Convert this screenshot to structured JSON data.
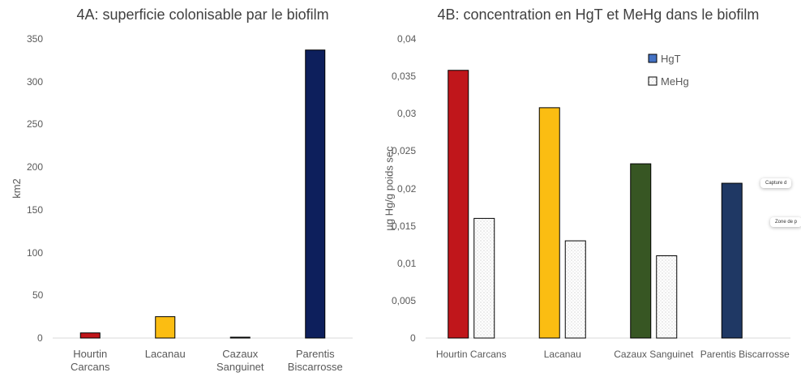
{
  "chart_data": [
    {
      "type": "bar",
      "title": "4A: superficie colonisable par le biofilm",
      "y_label": "km2",
      "categories": [
        "Hourtin Carcans",
        "Lacanau",
        "Cazaux Sanguinet",
        "Parentis Biscarrosse"
      ],
      "series": [
        {
          "name": "superficie",
          "values": [
            6,
            25,
            1,
            337
          ],
          "colors": [
            "#c0161b",
            "#fbbd12",
            "#375623",
            "#0d1f5c"
          ]
        }
      ],
      "ylim": [
        0,
        350
      ],
      "yticks": [
        0,
        50,
        100,
        150,
        200,
        250,
        300,
        350
      ],
      "legend": null
    },
    {
      "type": "bar",
      "title": "4B: concentration en HgT et MeHg dans le biofilm",
      "y_label": "µg Hg/g poids sec",
      "categories": [
        "Hourtin Carcans",
        "Lacanau",
        "Cazaux Sanguinet",
        "Parentis Biscarrosse"
      ],
      "series": [
        {
          "name": "HgT",
          "color": "#4472c4",
          "values": [
            0.0358,
            0.0308,
            0.0233,
            0.0207
          ],
          "colors": [
            "#c0161b",
            "#fbbd12",
            "#375623",
            "#1f3864"
          ]
        },
        {
          "name": "MeHg",
          "color": "#ffffff",
          "pattern": "dots",
          "values": [
            0.016,
            0.013,
            0.011,
            null
          ]
        }
      ],
      "ylim": [
        0,
        0.04
      ],
      "yticks": [
        0,
        {
          "value": 0.005,
          "label": "0,005"
        },
        {
          "value": 0.01,
          "label": "0,01"
        },
        {
          "value": 0.015,
          "label": "0,015"
        },
        {
          "value": 0.02,
          "label": "0,02"
        },
        {
          "value": 0.025,
          "label": "0,025"
        },
        {
          "value": 0.03,
          "label": "0,03"
        },
        {
          "value": 0.035,
          "label": "0,035"
        },
        {
          "value": 0.04,
          "label": "0,04"
        }
      ],
      "legend": "top-right"
    }
  ],
  "overlay": [
    "Capture d",
    "Zone de p"
  ]
}
